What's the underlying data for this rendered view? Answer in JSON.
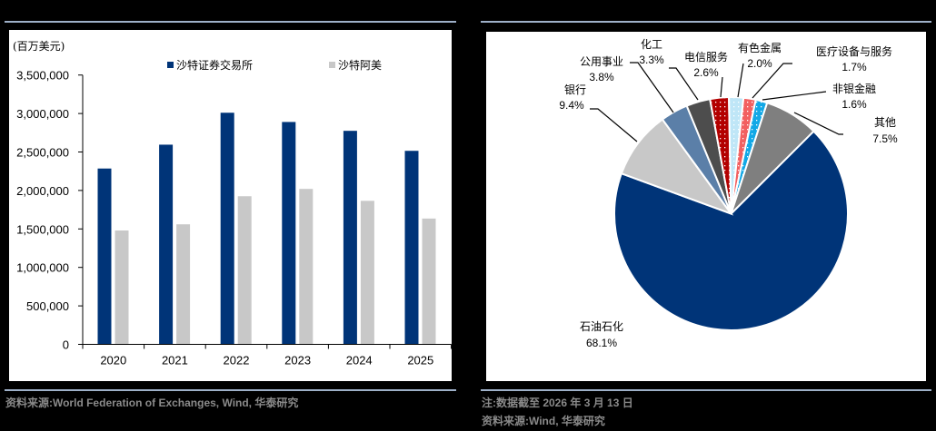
{
  "left_chart": {
    "unit_label": "(百万美元)",
    "legend": [
      {
        "label": "沙特证券交易所",
        "color": "#003478"
      },
      {
        "label": "沙特阿美",
        "color": "#c8c8c8"
      }
    ],
    "y_ticks": [
      "0",
      "500,000",
      "1,000,000",
      "1,500,000",
      "2,000,000",
      "2,500,000",
      "3,000,000",
      "3,500,000"
    ],
    "x_ticks": [
      "2020",
      "2021",
      "2022",
      "2023",
      "2024",
      "2025"
    ],
    "source": "资料来源:World Federation of Exchanges, Wind, 华泰研究"
  },
  "right_chart": {
    "labels": [
      {
        "name": "石油石化",
        "pct": "68.1%"
      },
      {
        "name": "银行",
        "pct": "9.4%"
      },
      {
        "name": "公用事业",
        "pct": "3.8%"
      },
      {
        "name": "化工",
        "pct": "3.3%"
      },
      {
        "name": "电信服务",
        "pct": "2.6%"
      },
      {
        "name": "有色金属",
        "pct": "2.0%"
      },
      {
        "name": "医疗设备与服务",
        "pct": "1.7%"
      },
      {
        "name": "非银金融",
        "pct": "1.6%"
      },
      {
        "name": "其他",
        "pct": "7.5%"
      }
    ],
    "note": "注:数据截至 2026 年 3 月 13 日",
    "source": "资料来源:Wind, 华泰研究"
  },
  "chart_data": [
    {
      "type": "bar",
      "title": "",
      "xlabel": "",
      "ylabel": "(百万美元)",
      "categories": [
        "2020",
        "2021",
        "2022",
        "2023",
        "2024",
        "2025"
      ],
      "series": [
        {
          "name": "沙特证券交易所",
          "color": "#003478",
          "values": [
            2285000,
            2595000,
            3010000,
            2890000,
            2775000,
            2515000
          ]
        },
        {
          "name": "沙特阿美",
          "color": "#c8c8c8",
          "values": [
            1480000,
            1560000,
            1925000,
            2020000,
            1865000,
            1635000
          ]
        }
      ],
      "ylim": [
        0,
        3500000
      ],
      "yticks": [
        0,
        500000,
        1000000,
        1500000,
        2000000,
        2500000,
        3000000,
        3500000
      ],
      "grid": false,
      "legend_position": "top"
    },
    {
      "type": "pie",
      "title": "",
      "categories": [
        "石油石化",
        "银行",
        "公用事业",
        "化工",
        "电信服务",
        "有色金属",
        "医疗设备与服务",
        "非银金融",
        "其他"
      ],
      "values": [
        68.1,
        9.4,
        3.8,
        3.3,
        2.6,
        2.0,
        1.7,
        1.6,
        7.5
      ],
      "colors": [
        "#003478",
        "#c8c8c8",
        "#5b7fa8",
        "#4d4d4d",
        "#b30000",
        "#bfe6f7",
        "#f26060",
        "#12a8e6",
        "#7f7f7f"
      ],
      "start_angle_clockwise_from_top_deg": 45,
      "note": "注:数据截至 2026 年 3 月 13 日"
    }
  ]
}
